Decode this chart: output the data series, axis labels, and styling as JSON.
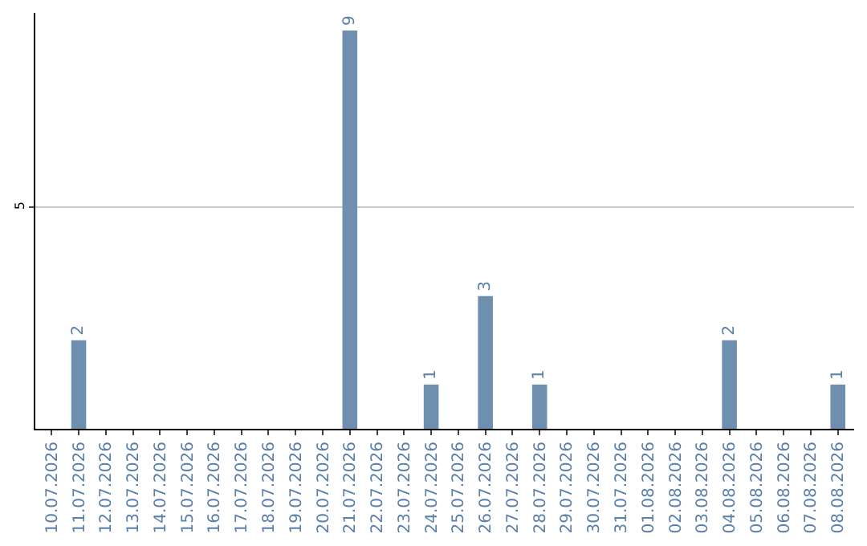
{
  "chart_data": {
    "type": "bar",
    "categories": [
      "10.07.2026",
      "11.07.2026",
      "12.07.2026",
      "13.07.2026",
      "14.07.2026",
      "15.07.2026",
      "16.07.2026",
      "17.07.2026",
      "18.07.2026",
      "19.07.2026",
      "20.07.2026",
      "21.07.2026",
      "22.07.2026",
      "23.07.2026",
      "24.07.2026",
      "25.07.2026",
      "26.07.2026",
      "27.07.2026",
      "28.07.2026",
      "29.07.2026",
      "30.07.2026",
      "31.07.2026",
      "01.08.2026",
      "02.08.2026",
      "03.08.2026",
      "04.08.2026",
      "05.08.2026",
      "06.08.2026",
      "07.08.2026",
      "08.08.2026"
    ],
    "values": [
      0,
      2,
      0,
      0,
      0,
      0,
      0,
      0,
      0,
      0,
      0,
      9,
      0,
      0,
      1,
      0,
      3,
      0,
      1,
      0,
      0,
      0,
      0,
      0,
      0,
      2,
      0,
      0,
      0,
      1
    ],
    "value_labels": [
      null,
      "2",
      null,
      null,
      null,
      null,
      null,
      null,
      null,
      null,
      null,
      "9",
      null,
      null,
      "1",
      null,
      "3",
      null,
      "1",
      null,
      null,
      null,
      null,
      null,
      null,
      "2",
      null,
      null,
      null,
      "1"
    ],
    "color": "#6f8fae",
    "ylim": [
      0,
      9.4
    ],
    "yticks": [
      5
    ],
    "grid": "y",
    "legend": false
  }
}
